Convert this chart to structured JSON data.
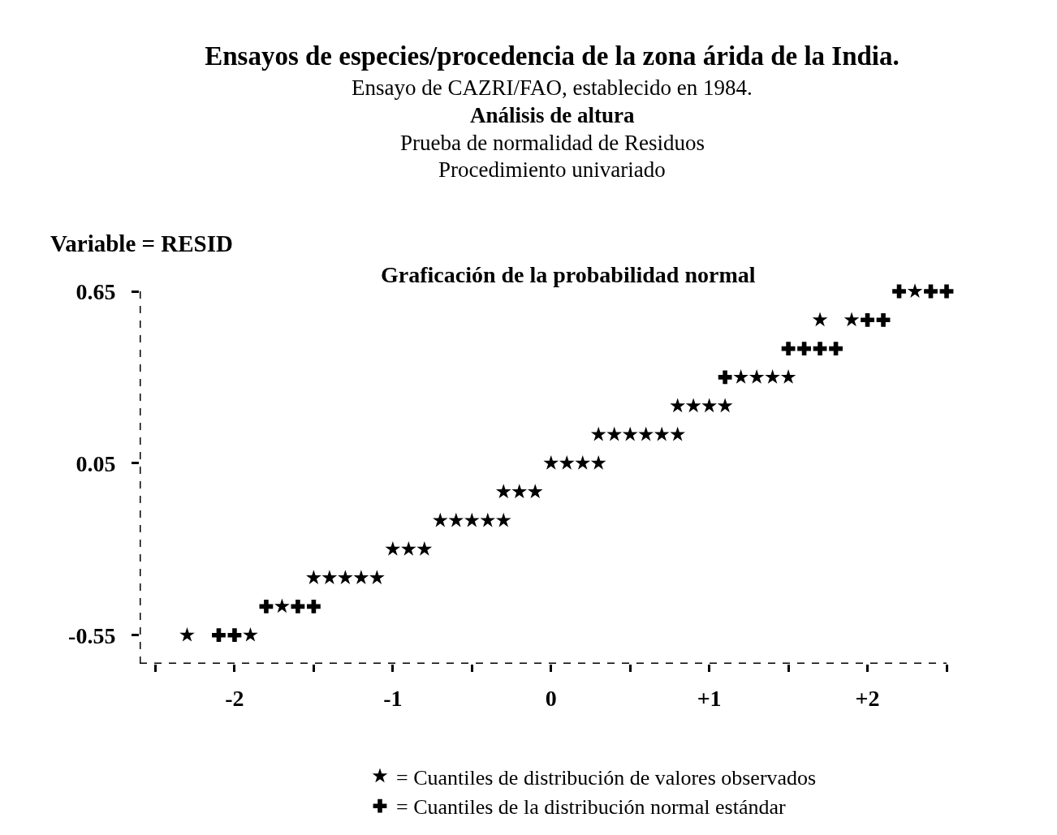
{
  "chart_data": {
    "type": "scatter",
    "title": "Ensayos de especies/procedencia de la zona árida de la India.",
    "subtitle": "Ensayo de CAZRI/FAO, establecido en 1984.\nAnálisis de altura\nPrueba de normalidad de Residuos\nProcedimiento univariado",
    "ylabel": "Variable = RESID",
    "annotations": [
      "Graficación de la probabilidad normal"
    ],
    "xlim": [
      -2.6,
      2.5
    ],
    "ylim": [
      -0.65,
      0.65
    ],
    "xticks": [
      {
        "value": -2.5,
        "label": null
      },
      -2,
      {
        "value": -1.5,
        "label": null
      },
      -1,
      {
        "value": -0.5,
        "label": null
      },
      0,
      {
        "value": 0.5,
        "label": null
      },
      {
        "value": 1,
        "label": "+1"
      },
      {
        "value": 1.5,
        "label": null
      },
      {
        "value": 2,
        "label": "+2"
      },
      {
        "value": 2.5,
        "label": null
      }
    ],
    "yticks": [
      -0.55,
      0.05,
      0.65
    ],
    "grid": false,
    "legend": "bottom",
    "series": [
      {
        "name": "= Cuantiles de distribución de valores observados",
        "color": "#000000",
        "marker": "star",
        "x": [
          -2.3,
          -1.9,
          -1.7,
          -1.5,
          -1.4,
          -1.3,
          -1.2,
          -1.1,
          -1.0,
          -0.9,
          -0.8,
          -0.7,
          -0.6,
          -0.5,
          -0.4,
          -0.3,
          -0.3,
          -0.2,
          -0.1,
          0.0,
          0.1,
          0.2,
          0.3,
          0.3,
          0.4,
          0.5,
          0.6,
          0.7,
          0.8,
          0.8,
          0.9,
          1.0,
          1.1,
          1.2,
          1.3,
          1.4,
          1.5,
          1.7,
          1.9,
          2.3
        ],
        "values": [
          -0.55,
          -0.55,
          -0.45,
          -0.35,
          -0.35,
          -0.35,
          -0.35,
          -0.35,
          -0.25,
          -0.25,
          -0.25,
          -0.15,
          -0.15,
          -0.15,
          -0.15,
          -0.15,
          -0.05,
          -0.05,
          -0.05,
          0.05,
          0.05,
          0.05,
          0.05,
          0.15,
          0.15,
          0.15,
          0.15,
          0.15,
          0.15,
          0.25,
          0.25,
          0.25,
          0.25,
          0.35,
          0.35,
          0.35,
          0.35,
          0.55,
          0.55,
          0.65
        ]
      },
      {
        "name": "= Cuantiles de la distribución normal estándar",
        "color": "#000000",
        "marker": "cross",
        "x": [
          -2.1,
          -2.0,
          -1.8,
          -1.6,
          -1.5,
          1.1,
          1.5,
          1.6,
          1.7,
          1.8,
          2.0,
          2.1,
          2.2,
          2.4,
          2.5
        ],
        "values": [
          -0.55,
          -0.55,
          -0.45,
          -0.45,
          -0.45,
          0.35,
          0.45,
          0.45,
          0.45,
          0.45,
          0.55,
          0.55,
          0.65,
          0.65,
          0.65
        ]
      }
    ]
  }
}
